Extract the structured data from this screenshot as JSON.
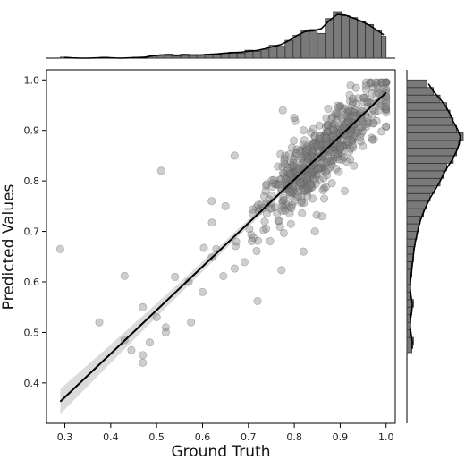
{
  "chart_data": {
    "type": "scatter",
    "subtype": "jointplot-regression",
    "xlabel": "Ground Truth",
    "ylabel": "Predicted Values",
    "xlim": [
      0.26,
      1.02
    ],
    "ylim": [
      0.32,
      1.02
    ],
    "x_ticks": [
      "0.3",
      "0.4",
      "0.5",
      "0.6",
      "0.7",
      "0.8",
      "0.9",
      "1.0"
    ],
    "y_ticks": [
      "0.4",
      "0.5",
      "0.6",
      "0.7",
      "0.8",
      "0.9",
      "1.0"
    ],
    "regression": {
      "x": [
        0.29,
        1.0
      ],
      "y": [
        0.363,
        0.975
      ],
      "ci_halfwidth_low_x": 0.025,
      "ci_halfwidth_high_x": 0.006
    },
    "point_color": "#7f7f7f",
    "line_color": "#000000",
    "bar_color": "#7a7a7a",
    "grid": false,
    "outlier_points": [
      {
        "x": 0.29,
        "y": 0.665
      },
      {
        "x": 0.375,
        "y": 0.52
      },
      {
        "x": 0.43,
        "y": 0.485
      },
      {
        "x": 0.43,
        "y": 0.612
      },
      {
        "x": 0.445,
        "y": 0.465
      },
      {
        "x": 0.47,
        "y": 0.455
      },
      {
        "x": 0.47,
        "y": 0.44
      },
      {
        "x": 0.47,
        "y": 0.55
      },
      {
        "x": 0.485,
        "y": 0.48
      },
      {
        "x": 0.5,
        "y": 0.53
      },
      {
        "x": 0.51,
        "y": 0.82
      },
      {
        "x": 0.52,
        "y": 0.51
      },
      {
        "x": 0.52,
        "y": 0.5
      },
      {
        "x": 0.54,
        "y": 0.61
      },
      {
        "x": 0.57,
        "y": 0.6
      },
      {
        "x": 0.575,
        "y": 0.52
      },
      {
        "x": 0.6,
        "y": 0.58
      },
      {
        "x": 0.62,
        "y": 0.76
      },
      {
        "x": 0.63,
        "y": 0.665
      },
      {
        "x": 0.65,
        "y": 0.75
      },
      {
        "x": 0.67,
        "y": 0.85
      },
      {
        "x": 0.72,
        "y": 0.562
      },
      {
        "x": 0.73,
        "y": 0.755
      },
      {
        "x": 0.775,
        "y": 0.94
      },
      {
        "x": 0.8,
        "y": 0.925
      },
      {
        "x": 0.82,
        "y": 0.66
      },
      {
        "x": 0.82,
        "y": 0.9
      },
      {
        "x": 0.845,
        "y": 0.7
      },
      {
        "x": 0.84,
        "y": 0.765
      },
      {
        "x": 0.86,
        "y": 0.73
      },
      {
        "x": 0.91,
        "y": 0.78
      },
      {
        "x": 0.93,
        "y": 0.83
      }
    ],
    "cloud": {
      "count": 620,
      "x_mean": 0.865,
      "x_sd": 0.075,
      "x_min": 0.47,
      "x_max": 1.0,
      "noise_sd": 0.033,
      "seed": 7
    },
    "x_hist": {
      "bins": [
        0.29,
        0.3075,
        0.325,
        0.3425,
        0.36,
        0.3775,
        0.395,
        0.4125,
        0.43,
        0.4475,
        0.465,
        0.4825,
        0.5,
        0.5175,
        0.535,
        0.5525,
        0.57,
        0.5875,
        0.605,
        0.6225,
        0.64,
        0.6575,
        0.675,
        0.6925,
        0.71,
        0.7275,
        0.745,
        0.7625,
        0.78,
        0.7975,
        0.815,
        0.8325,
        0.85,
        0.8675,
        0.885,
        0.9025,
        0.92,
        0.9375,
        0.955,
        0.9725,
        0.99,
        1.0
      ],
      "counts": [
        1,
        0,
        0,
        0,
        0,
        1,
        0,
        0,
        0,
        1,
        0,
        3,
        3,
        4,
        2,
        4,
        3,
        3,
        4,
        4,
        5,
        6,
        5,
        8,
        7,
        9,
        13,
        12,
        18,
        23,
        28,
        29,
        25,
        40,
        47,
        43,
        41,
        37,
        34,
        28,
        22
      ]
    },
    "y_hist": {
      "bins": [
        0.46,
        0.475,
        0.49,
        0.505,
        0.52,
        0.535,
        0.55,
        0.565,
        0.58,
        0.595,
        0.61,
        0.625,
        0.64,
        0.655,
        0.67,
        0.685,
        0.7,
        0.715,
        0.73,
        0.745,
        0.76,
        0.775,
        0.79,
        0.805,
        0.82,
        0.835,
        0.85,
        0.865,
        0.88,
        0.895,
        0.91,
        0.925,
        0.94,
        0.955,
        0.97,
        0.985,
        1.0
      ],
      "counts": [
        3,
        4,
        2,
        2,
        2,
        3,
        4,
        2,
        2,
        2,
        3,
        3,
        4,
        4,
        5,
        6,
        7,
        8,
        10,
        12,
        14,
        17,
        20,
        22,
        24,
        28,
        30,
        31,
        34,
        30,
        28,
        26,
        24,
        20,
        16,
        12
      ]
    }
  }
}
